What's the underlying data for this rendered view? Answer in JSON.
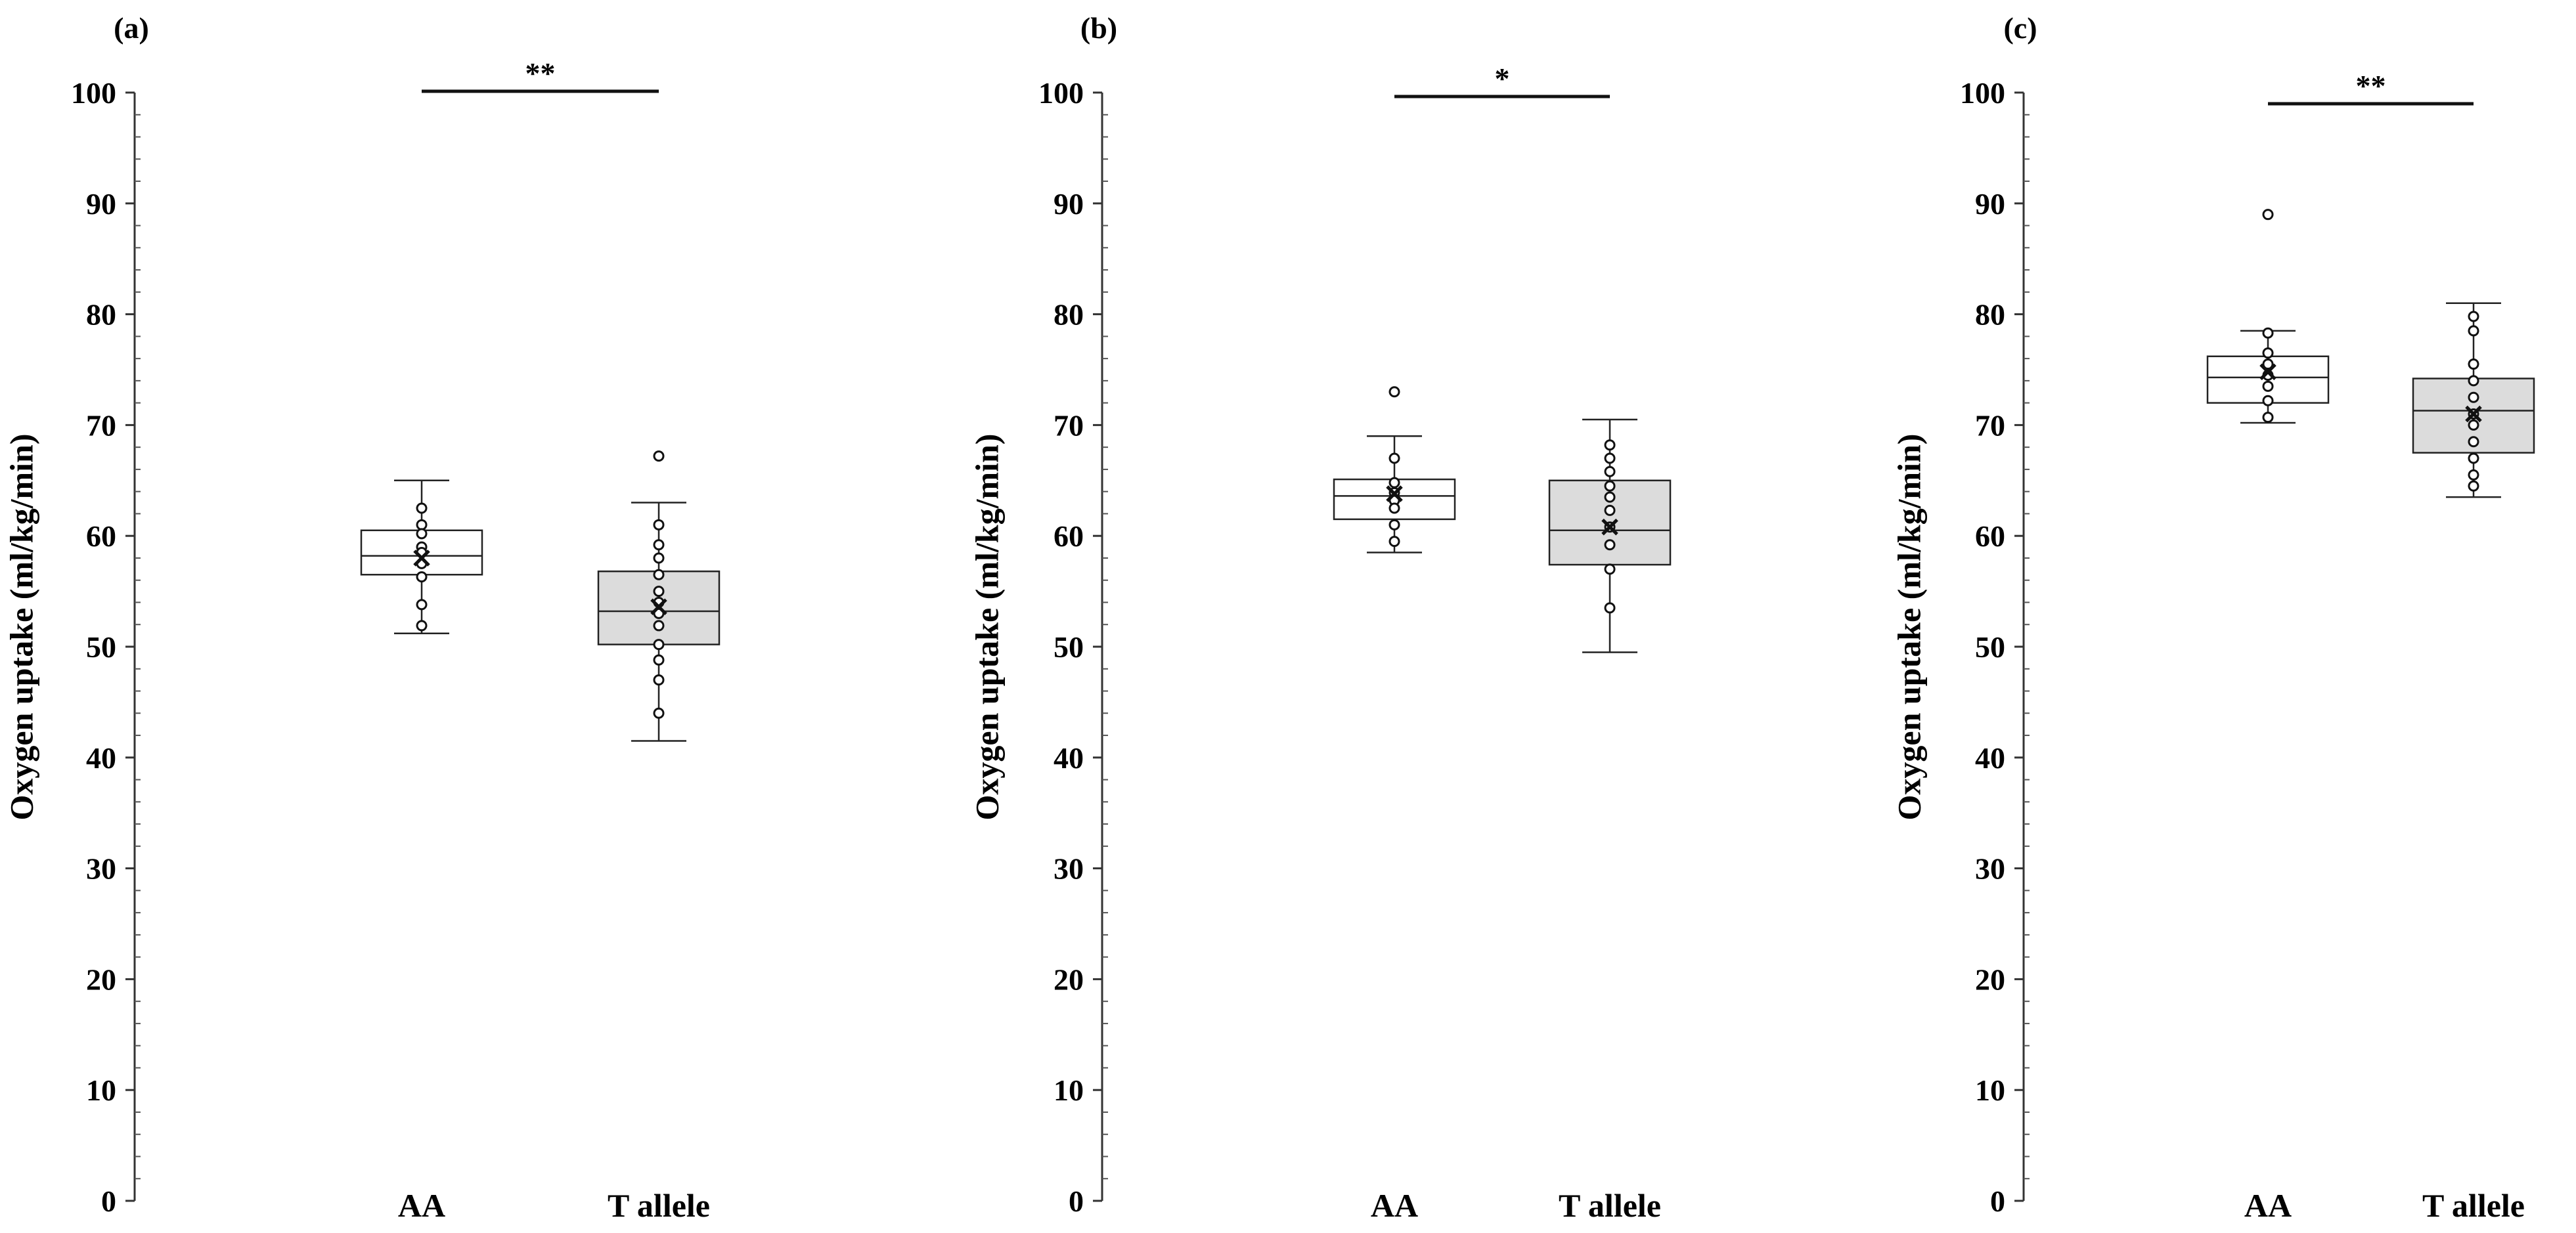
{
  "figure": {
    "y_axis_label": "Oxygen  uptake (ml/kg/min)",
    "colors": {
      "box_aa": "#ffffff",
      "box_t": "#dcdcdc",
      "stroke": "#222222"
    }
  },
  "chart_data": [
    {
      "type": "box",
      "panel_label": "(a)",
      "ylabel": "Oxygen  uptake (ml/kg/min)",
      "ylim": [
        0,
        100
      ],
      "yticks": [
        0,
        10,
        20,
        30,
        40,
        50,
        60,
        70,
        80,
        90,
        100
      ],
      "significance": "**",
      "categories": [
        "AA",
        "T allele"
      ],
      "series": [
        {
          "name": "AA",
          "min": 51.2,
          "q1": 56.5,
          "median": 58.2,
          "q3": 60.5,
          "max": 65.0,
          "mean": 58.0,
          "points": [
            62.5,
            61.0,
            60.2,
            59.0,
            58.5,
            57.5,
            56.3,
            53.8,
            51.9
          ],
          "outliers": []
        },
        {
          "name": "T allele",
          "min": 41.5,
          "q1": 50.2,
          "median": 53.2,
          "q3": 56.8,
          "max": 63.0,
          "mean": 53.6,
          "points": [
            61.0,
            59.2,
            58.0,
            56.5,
            55.0,
            54.0,
            53.0,
            51.9,
            50.2,
            48.8,
            47.0,
            44.0
          ],
          "outliers": [
            67.2
          ]
        }
      ]
    },
    {
      "type": "box",
      "panel_label": "(b)",
      "ylabel": "Oxygen  uptake (ml/kg/min)",
      "ylim": [
        0,
        100
      ],
      "yticks": [
        0,
        10,
        20,
        30,
        40,
        50,
        60,
        70,
        80,
        90,
        100
      ],
      "significance": "*",
      "categories": [
        "AA",
        "T allele"
      ],
      "series": [
        {
          "name": "AA",
          "min": 58.5,
          "q1": 61.5,
          "median": 63.6,
          "q3": 65.1,
          "max": 69.0,
          "mean": 63.8,
          "points": [
            67.0,
            64.8,
            63.9,
            63.2,
            62.5,
            61.0,
            59.5
          ],
          "outliers": [
            73.0
          ]
        },
        {
          "name": "T allele",
          "min": 49.5,
          "q1": 57.4,
          "median": 60.5,
          "q3": 65.0,
          "max": 70.5,
          "mean": 60.8,
          "points": [
            68.2,
            67.0,
            65.8,
            64.5,
            63.5,
            62.3,
            60.8,
            59.2,
            57.0,
            53.5
          ],
          "outliers": []
        }
      ]
    },
    {
      "type": "box",
      "panel_label": "(c)",
      "ylabel": "Oxygen  uptake (ml/kg/min)",
      "ylim": [
        0,
        100
      ],
      "yticks": [
        0,
        10,
        20,
        30,
        40,
        50,
        60,
        70,
        80,
        90,
        100
      ],
      "significance": "**",
      "categories": [
        "AA",
        "T allele"
      ],
      "series": [
        {
          "name": "AA",
          "min": 70.2,
          "q1": 72.0,
          "median": 74.3,
          "q3": 76.2,
          "max": 78.5,
          "mean": 74.8,
          "points": [
            78.3,
            76.5,
            75.5,
            74.5,
            73.5,
            72.2,
            70.7
          ],
          "outliers": [
            89.0
          ]
        },
        {
          "name": "T allele",
          "min": 63.5,
          "q1": 67.5,
          "median": 71.3,
          "q3": 74.2,
          "max": 81.0,
          "mean": 71.0,
          "points": [
            79.8,
            78.5,
            75.5,
            74.0,
            72.5,
            71.0,
            70.0,
            68.5,
            67.0,
            65.5,
            64.5
          ],
          "outliers": []
        }
      ]
    }
  ]
}
